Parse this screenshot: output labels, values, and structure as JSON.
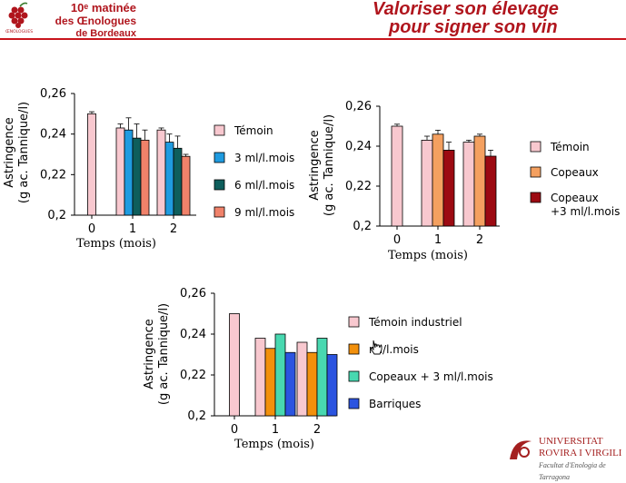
{
  "header": {
    "logo_text": "ŒNOLOGUES BORDEAUX",
    "event_line1": "10ᵉ matinée",
    "event_line2": "des Œnologues",
    "event_line3": "de Bordeaux",
    "title_line1": "Valoriser son élevage",
    "title_line2": "pour signer son vin",
    "accent_color": "#b0151d"
  },
  "footer": {
    "university_line1": "UNIVERSITAT",
    "university_line2": "ROVIRA I VIRGILI",
    "faculty": "Facultat d'Enologia de Tarragona"
  },
  "chart_data": [
    {
      "type": "bar",
      "ylabel_line1": "Astringence",
      "ylabel_line2": "(g ac. Tannique/l)",
      "xlabel": "Temps (mois)",
      "ylim": [
        0.2,
        0.26
      ],
      "yticks": [
        "0,2",
        "0,22",
        "0,24",
        "0,26"
      ],
      "categories": [
        "0",
        "1",
        "2"
      ],
      "legend_position": "right",
      "series": [
        {
          "name": "Témoin",
          "color": "#f8c8cf",
          "values": [
            0.25,
            0.243,
            0.242
          ],
          "errors": [
            0.001,
            0.002,
            0.001
          ]
        },
        {
          "name": "3 ml/l.mois",
          "color": "#1f9be0",
          "values": [
            null,
            0.242,
            0.236
          ],
          "errors": [
            0,
            0.006,
            0.004
          ]
        },
        {
          "name": "6 ml/l.mois",
          "color": "#0e5e5c",
          "values": [
            null,
            0.238,
            0.233
          ],
          "errors": [
            0,
            0.007,
            0.006
          ]
        },
        {
          "name": "9 ml/l.mois",
          "color": "#f0826a",
          "values": [
            null,
            0.237,
            0.229
          ],
          "errors": [
            0,
            0.005,
            0.001
          ]
        }
      ]
    },
    {
      "type": "bar",
      "ylabel_line1": "Astringence",
      "ylabel_line2": "(g ac. Tannique/l)",
      "xlabel": "Temps (mois)",
      "ylim": [
        0.2,
        0.26
      ],
      "yticks": [
        "0,2",
        "0,22",
        "0,24",
        "0,26"
      ],
      "categories": [
        "0",
        "1",
        "2"
      ],
      "legend_position": "right",
      "series": [
        {
          "name": "Témoin",
          "color": "#f8c8cf",
          "values": [
            0.25,
            0.243,
            0.242
          ],
          "errors": [
            0.001,
            0.002,
            0.001
          ]
        },
        {
          "name": "Copeaux",
          "color": "#f4a060",
          "values": [
            null,
            0.246,
            0.245
          ],
          "errors": [
            0,
            0.002,
            0.001
          ]
        },
        {
          "name": "Copeaux +3 ml/l.mois",
          "color": "#9c0a12",
          "values": [
            null,
            0.238,
            0.235
          ],
          "errors": [
            0,
            0.004,
            0.003
          ]
        }
      ]
    },
    {
      "type": "bar",
      "ylabel_line1": "Astringence",
      "ylabel_line2": "(g ac. Tannique/l)",
      "xlabel": "Temps (mois)",
      "ylim": [
        0.2,
        0.26
      ],
      "yticks": [
        "0,2",
        "0,22",
        "0,24",
        "0,26"
      ],
      "categories": [
        "0",
        "1",
        "2"
      ],
      "legend_position": "right",
      "series": [
        {
          "name": "Témoin industriel",
          "color": "#f8c8cf",
          "values": [
            0.25,
            0.238,
            0.236
          ],
          "errors": [
            0,
            0,
            0
          ]
        },
        {
          "name": "ml/l.mois",
          "color": "#f2900c",
          "values": [
            null,
            0.233,
            0.231
          ],
          "errors": [
            0,
            0,
            0
          ]
        },
        {
          "name": "Copeaux + 3 ml/l.mois",
          "color": "#48d8b0",
          "values": [
            null,
            0.24,
            0.238
          ],
          "errors": [
            0,
            0,
            0
          ]
        },
        {
          "name": "Barriques",
          "color": "#2b54e0",
          "values": [
            null,
            0.231,
            0.23
          ],
          "errors": [
            0,
            0,
            0
          ]
        }
      ]
    }
  ]
}
